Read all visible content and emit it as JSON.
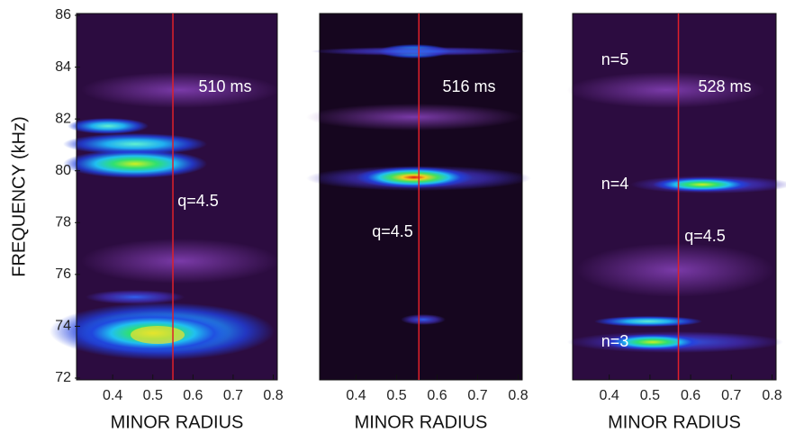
{
  "chart_data": [
    {
      "type": "heatmap",
      "xlabel": "MINOR RADIUS",
      "ylabel": "FREQUENCY (kHz)",
      "xlim": [
        0.31,
        0.81
      ],
      "xticks": [
        0.4,
        0.5,
        0.6,
        0.7,
        0.8
      ],
      "ylim": [
        72,
        86
      ],
      "yticks": [
        72,
        74,
        76,
        78,
        80,
        82,
        84,
        86
      ],
      "line_x": 0.55,
      "line_color": "#e0202a",
      "annotations": [
        "510 ms",
        "q=4.5"
      ]
    },
    {
      "type": "heatmap",
      "xlabel": "MINOR RADIUS",
      "xlim": [
        0.31,
        0.81
      ],
      "xticks": [
        0.4,
        0.5,
        0.6,
        0.7,
        0.8
      ],
      "ylim": [
        72,
        86
      ],
      "line_x": 0.555,
      "line_color": "#e0202a",
      "annotations": [
        "516 ms",
        "q=4.5"
      ]
    },
    {
      "type": "heatmap",
      "xlabel": "MINOR RADIUS",
      "xlim": [
        0.31,
        0.81
      ],
      "xticks": [
        0.4,
        0.5,
        0.6,
        0.7,
        0.8
      ],
      "ylim": [
        72,
        86
      ],
      "line_x": 0.57,
      "line_color": "#e0202a",
      "annotations": [
        "n=5",
        "528 ms",
        "n=4",
        "q=4.5",
        "n=3"
      ]
    }
  ]
}
